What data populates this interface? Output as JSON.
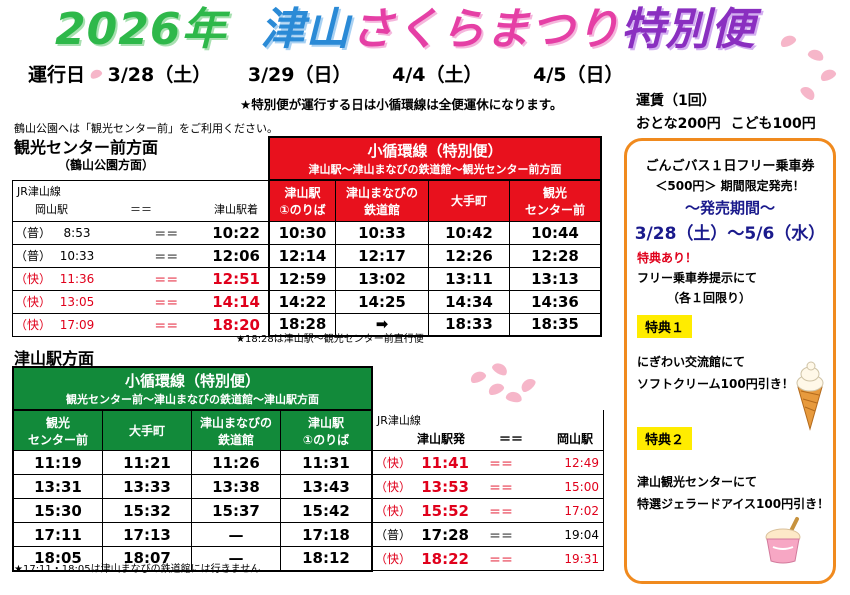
{
  "title": {
    "year": "2026年",
    "city": "津山",
    "festival": "さくらまつり",
    "special": "特別便"
  },
  "op_days": {
    "label": "運行日",
    "days": [
      "3/28（土）",
      "3/29（日）",
      "4/4（土）",
      "4/5（日）"
    ]
  },
  "notice_loop": "★特別便が運行する日は小循環線は全便運休になります。",
  "notice_park": "鶴山公園へは「観光センター前」をご利用ください。",
  "fare": {
    "label": "運賃（1回）",
    "adult": "おとな200円",
    "child": "こども100円"
  },
  "upper": {
    "direction": "観光センター前方面",
    "direction_sub": "（鶴山公園方面）",
    "jr_label": "JR津山線",
    "jr_from": "岡山駅",
    "arrow": "＝＝",
    "jr_to": "津山駅着",
    "route_title": "小循環線（特別便）",
    "route_sub": "津山駅～津山まなびの鉄道館～観光センター前方面",
    "stops": [
      [
        "津山駅",
        "①のりば"
      ],
      [
        "津山まなびの",
        "鉄道館"
      ],
      [
        "大手町"
      ],
      [
        "観光",
        "センター前"
      ]
    ],
    "rows": [
      {
        "kind": "（普）",
        "dep": "8:53",
        "arr": "10:22",
        "times": [
          "10:30",
          "10:33",
          "10:42",
          "10:44"
        ],
        "rapid": false
      },
      {
        "kind": "（普）",
        "dep": "10:33",
        "arr": "12:06",
        "times": [
          "12:14",
          "12:17",
          "12:26",
          "12:28"
        ],
        "rapid": false
      },
      {
        "kind": "（快）",
        "dep": "11:36",
        "arr": "12:51",
        "times": [
          "12:59",
          "13:02",
          "13:11",
          "13:13"
        ],
        "rapid": true
      },
      {
        "kind": "（快）",
        "dep": "13:05",
        "arr": "14:14",
        "times": [
          "14:22",
          "14:25",
          "14:34",
          "14:36"
        ],
        "rapid": true
      },
      {
        "kind": "（快）",
        "dep": "17:09",
        "arr": "18:20",
        "times": [
          "18:28",
          "➡",
          "18:33",
          "18:35"
        ],
        "rapid": true
      }
    ],
    "footnote": "★18:28は津山駅～観光センター前直行便"
  },
  "lower": {
    "direction": "津山駅方面",
    "route_title": "小循環線（特別便）",
    "route_sub": "観光センター前～津山まなびの鉄道館～津山駅方面",
    "stops": [
      [
        "観光",
        "センター前"
      ],
      [
        "大手町"
      ],
      [
        "津山まなびの",
        "鉄道館"
      ],
      [
        "津山駅",
        "①のりば"
      ]
    ],
    "jr_label": "JR津山線",
    "jr_from": "津山駅発",
    "arrow": "＝＝",
    "jr_to": "岡山駅",
    "rows": [
      {
        "times": [
          "11:19",
          "11:21",
          "11:26",
          "11:31"
        ],
        "kind": "（快）",
        "dep": "11:41",
        "arr": "12:49",
        "rapid": true
      },
      {
        "times": [
          "13:31",
          "13:33",
          "13:38",
          "13:43"
        ],
        "kind": "（快）",
        "dep": "13:53",
        "arr": "15:00",
        "rapid": true
      },
      {
        "times": [
          "15:30",
          "15:32",
          "15:37",
          "15:42"
        ],
        "kind": "（快）",
        "dep": "15:52",
        "arr": "17:02",
        "rapid": true
      },
      {
        "times": [
          "17:11",
          "17:13",
          "—",
          "17:18"
        ],
        "kind": "（普）",
        "dep": "17:28",
        "arr": "19:04",
        "rapid": false
      },
      {
        "times": [
          "18:05",
          "18:07",
          "—",
          "18:12"
        ],
        "kind": "（快）",
        "dep": "18:22",
        "arr": "19:31",
        "rapid": true
      }
    ],
    "footnote": "★17:11・18:05は津山まなびの鉄道館には行きません"
  },
  "free_pass": {
    "line1": "ごんごバス１日フリー乗車券",
    "line2": "＜500円＞ 期間限定発売！",
    "line3": "～発売期間～",
    "period_start": "3/28（土）",
    "period_sep": "～",
    "period_end": "5/6（水）",
    "benefit_heading": "特典あり！",
    "benefit_note1": "フリー乗車券提示にて",
    "benefit_note2": "（各１回限り）",
    "perk1_label": "特典１",
    "perk1_line1": "にぎわい交流館にて",
    "perk1_line2": "ソフトクリーム100円引き！",
    "perk2_label": "特典２",
    "perk2_line1": "津山観光センターにて",
    "perk2_line2": "特選ジェラードアイス100円引き！"
  },
  "colors": {
    "rapid_red": "#e0001b",
    "upper_header": "#e8111d",
    "lower_header": "#128a3a",
    "box_border": "#f08a1e",
    "perk_bg": "#ffec00"
  }
}
